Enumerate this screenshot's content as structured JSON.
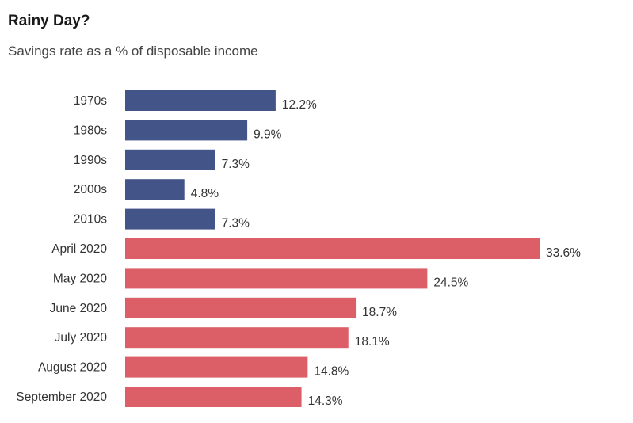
{
  "chart_data": {
    "type": "bar",
    "orientation": "horizontal",
    "title": "Rainy Day?",
    "subtitle": "Savings rate as a % of disposable income",
    "categories": [
      "1970s",
      "1980s",
      "1990s",
      "2000s",
      "2010s",
      "April 2020",
      "May 2020",
      "June 2020",
      "July 2020",
      "August 2020",
      "September 2020"
    ],
    "values": [
      12.2,
      9.9,
      7.3,
      4.8,
      7.3,
      33.6,
      24.5,
      18.7,
      18.1,
      14.8,
      14.3
    ],
    "value_labels": [
      "12.2%",
      "9.9%",
      "7.3%",
      "4.8%",
      "7.3%",
      "33.6%",
      "24.5%",
      "18.7%",
      "18.1%",
      "14.8%",
      "14.3%"
    ],
    "bar_colors": [
      "#435489",
      "#435489",
      "#435489",
      "#435489",
      "#435489",
      "#dc5f67",
      "#dc5f67",
      "#dc5f67",
      "#dc5f67",
      "#dc5f67",
      "#dc5f67"
    ],
    "xlim": [
      0,
      33.6
    ],
    "grid": false,
    "legend": "none"
  }
}
